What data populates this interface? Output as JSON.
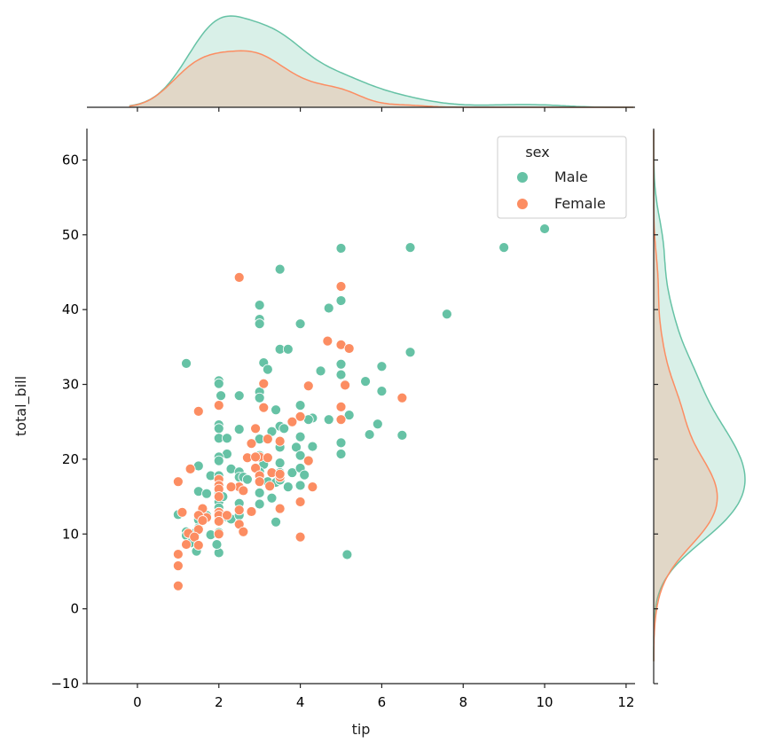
{
  "chart_data": {
    "type": "scatter",
    "kind": "jointplot",
    "xlabel": "tip",
    "ylabel": "total_bill",
    "xlim": [
      -1.24,
      12.22
    ],
    "ylim": [
      -10.0,
      64.2
    ],
    "xticks": [
      0,
      2,
      4,
      6,
      8,
      10,
      12
    ],
    "yticks": [
      -10,
      0,
      10,
      20,
      30,
      40,
      50,
      60
    ],
    "grid": false,
    "legend": {
      "title": "sex",
      "placement": "top-right"
    },
    "marginals": "kde",
    "series": [
      {
        "name": "Male",
        "color": "#66c2a5",
        "points": [
          [
            10,
            50.8
          ],
          [
            9,
            48.3
          ],
          [
            6.7,
            48.3
          ],
          [
            5,
            48.2
          ],
          [
            3.5,
            45.4
          ],
          [
            5,
            41.2
          ],
          [
            3,
            40.6
          ],
          [
            4.7,
            40.2
          ],
          [
            7.6,
            39.4
          ],
          [
            3,
            38.7
          ],
          [
            3,
            38.1
          ],
          [
            4,
            38.1
          ],
          [
            3.5,
            34.7
          ],
          [
            3.7,
            34.7
          ],
          [
            6.7,
            34.3
          ],
          [
            1.2,
            32.8
          ],
          [
            3.1,
            32.9
          ],
          [
            5,
            32.7
          ],
          [
            3.2,
            32
          ],
          [
            4.5,
            31.8
          ],
          [
            6,
            32.4
          ],
          [
            5,
            31.3
          ],
          [
            2,
            30.5
          ],
          [
            2,
            30.1
          ],
          [
            5.6,
            30.4
          ],
          [
            5.1,
            30
          ],
          [
            3,
            29
          ],
          [
            6,
            29.1
          ],
          [
            2.05,
            28.5
          ],
          [
            2.5,
            28.5
          ],
          [
            3,
            28.2
          ],
          [
            3.4,
            26.6
          ],
          [
            5.2,
            25.9
          ],
          [
            4,
            27.2
          ],
          [
            4.7,
            25.3
          ],
          [
            4.3,
            25.5
          ],
          [
            4.2,
            25.3
          ],
          [
            5.9,
            24.7
          ],
          [
            2,
            24.6
          ],
          [
            2,
            24.1
          ],
          [
            2.5,
            24
          ],
          [
            3.5,
            24.4
          ],
          [
            3.6,
            24.1
          ],
          [
            5.7,
            23.3
          ],
          [
            6.5,
            23.2
          ],
          [
            3.3,
            23.7
          ],
          [
            4,
            23
          ],
          [
            2,
            22.8
          ],
          [
            2.2,
            22.8
          ],
          [
            3,
            22.7
          ],
          [
            5,
            22.2
          ],
          [
            3.5,
            21.6
          ],
          [
            3.9,
            21.6
          ],
          [
            4.3,
            21.7
          ],
          [
            2.2,
            20.7
          ],
          [
            3,
            20.5
          ],
          [
            4,
            20.5
          ],
          [
            5,
            20.7
          ],
          [
            3.5,
            19.5
          ],
          [
            2,
            20.3
          ],
          [
            2,
            19.8
          ],
          [
            1.5,
            19.1
          ],
          [
            3.1,
            19.3
          ],
          [
            2.3,
            18.7
          ],
          [
            2.5,
            18.3
          ],
          [
            3,
            18.3
          ],
          [
            3.5,
            18.2
          ],
          [
            3.8,
            18.2
          ],
          [
            4,
            18.8
          ],
          [
            4.1,
            17.9
          ],
          [
            1.8,
            17.8
          ],
          [
            2,
            17.8
          ],
          [
            2.5,
            17.6
          ],
          [
            2.6,
            17.6
          ],
          [
            2.7,
            17.3
          ],
          [
            3,
            17.1
          ],
          [
            3.2,
            17
          ],
          [
            3.4,
            16.9
          ],
          [
            3.5,
            17.2
          ],
          [
            3.7,
            16.3
          ],
          [
            4,
            16.5
          ],
          [
            1.5,
            15.7
          ],
          [
            1.7,
            15.4
          ],
          [
            2,
            15.4
          ],
          [
            2,
            14.8
          ],
          [
            2,
            14.3
          ],
          [
            2.5,
            14.1
          ],
          [
            2.1,
            15
          ],
          [
            3,
            15.5
          ],
          [
            3.3,
            14.8
          ],
          [
            3,
            14
          ],
          [
            1,
            12.6
          ],
          [
            1.5,
            12.5
          ],
          [
            1.5,
            11.9
          ],
          [
            1.6,
            13.4
          ],
          [
            1.7,
            12.5
          ],
          [
            2,
            13.5
          ],
          [
            2,
            12.9
          ],
          [
            2,
            12.3
          ],
          [
            2.2,
            12.3
          ],
          [
            2.3,
            12
          ],
          [
            2.5,
            12.7
          ],
          [
            2.5,
            12.5
          ],
          [
            2,
            12
          ],
          [
            1.2,
            10.3
          ],
          [
            1.2,
            9.8
          ],
          [
            1.45,
            10.3
          ],
          [
            1.5,
            10.8
          ],
          [
            1.8,
            9.9
          ],
          [
            1.3,
            8.8
          ],
          [
            1.45,
            7.7
          ],
          [
            2,
            7.5
          ],
          [
            1.95,
            8.6
          ],
          [
            2,
            10.2
          ],
          [
            3.4,
            11.6
          ],
          [
            5.15,
            7.25
          ]
        ]
      },
      {
        "name": "Female",
        "color": "#fc8d62",
        "points": [
          [
            2.5,
            44.3
          ],
          [
            5,
            43.1
          ],
          [
            5,
            35.3
          ],
          [
            5.2,
            34.8
          ],
          [
            4.67,
            35.8
          ],
          [
            3.1,
            30.1
          ],
          [
            4.2,
            29.8
          ],
          [
            5.1,
            29.9
          ],
          [
            6.5,
            28.2
          ],
          [
            3.1,
            26.9
          ],
          [
            1.5,
            26.4
          ],
          [
            2,
            27.2
          ],
          [
            5,
            27
          ],
          [
            5,
            25.3
          ],
          [
            4,
            25.7
          ],
          [
            3.8,
            25
          ],
          [
            2.9,
            24.1
          ],
          [
            3.5,
            22.4
          ],
          [
            3.2,
            22.7
          ],
          [
            2.8,
            22.1
          ],
          [
            3,
            20.3
          ],
          [
            4.2,
            19.8
          ],
          [
            3.2,
            20.2
          ],
          [
            2.7,
            20.2
          ],
          [
            2.9,
            20.3
          ],
          [
            1.3,
            18.7
          ],
          [
            1,
            17
          ],
          [
            2,
            17.3
          ],
          [
            2.9,
            18.8
          ],
          [
            3.3,
            18.2
          ],
          [
            3.5,
            17.6
          ],
          [
            3.5,
            18
          ],
          [
            3,
            17.8
          ],
          [
            3,
            17
          ],
          [
            3.25,
            16.4
          ],
          [
            2.5,
            16.3
          ],
          [
            2,
            16.5
          ],
          [
            2,
            16
          ],
          [
            2.3,
            16.3
          ],
          [
            2.6,
            15.8
          ],
          [
            3.5,
            13.4
          ],
          [
            4,
            14.3
          ],
          [
            4.3,
            16.3
          ],
          [
            2,
            15
          ],
          [
            1.6,
            13.4
          ],
          [
            1.7,
            12.2
          ],
          [
            2,
            12.9
          ],
          [
            2,
            12.5
          ],
          [
            2,
            11.7
          ],
          [
            2.2,
            12.5
          ],
          [
            2.5,
            13.2
          ],
          [
            2.8,
            13
          ],
          [
            2.5,
            11.3
          ],
          [
            1.5,
            12.5
          ],
          [
            1.6,
            11.8
          ],
          [
            1.25,
            10.1
          ],
          [
            1.5,
            10.6
          ],
          [
            1.4,
            9.6
          ],
          [
            1.2,
            8.6
          ],
          [
            1.5,
            8.5
          ],
          [
            2,
            10
          ],
          [
            2.6,
            10.3
          ],
          [
            4,
            9.6
          ],
          [
            1,
            7.3
          ],
          [
            1,
            5.75
          ],
          [
            1,
            3.07
          ],
          [
            1.1,
            12.9
          ]
        ]
      }
    ]
  }
}
